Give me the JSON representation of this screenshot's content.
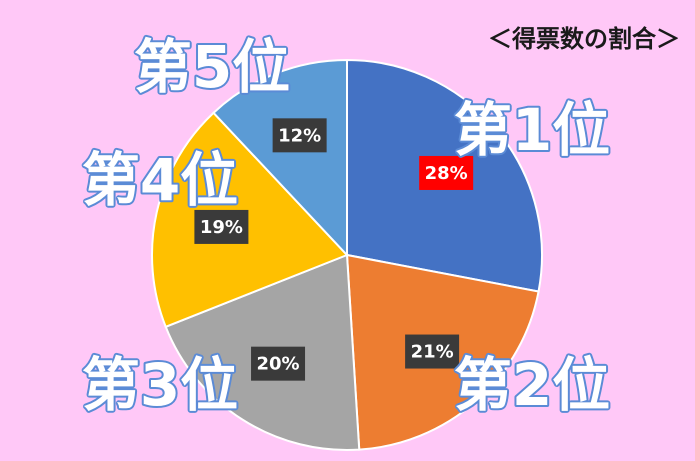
{
  "title": "＜得票数の割合＞",
  "colors": {
    "background": "#FFC8F7",
    "label_box": "#3A3A3A",
    "label_box_highlight": "#FF0000",
    "rank_label_fill": "#FFFFFF",
    "rank_label_stroke": "#5B8BD6"
  },
  "chart_data": {
    "type": "pie",
    "title": "＜得票数の割合＞",
    "start_angle_deg": 0,
    "direction": "clockwise",
    "legend": "none",
    "slices": [
      {
        "label": "第1位",
        "value": 28,
        "value_label": "28%",
        "color": "#4472C4",
        "highlight": true
      },
      {
        "label": "第2位",
        "value": 21,
        "value_label": "21%",
        "color": "#ED7D31",
        "highlight": false
      },
      {
        "label": "第3位",
        "value": 20,
        "value_label": "20%",
        "color": "#A5A5A5",
        "highlight": false
      },
      {
        "label": "第4位",
        "value": 19,
        "value_label": "19%",
        "color": "#FFC000",
        "highlight": false
      },
      {
        "label": "第5位",
        "value": 12,
        "value_label": "12%",
        "color": "#5B9BD5",
        "highlight": false
      }
    ]
  }
}
